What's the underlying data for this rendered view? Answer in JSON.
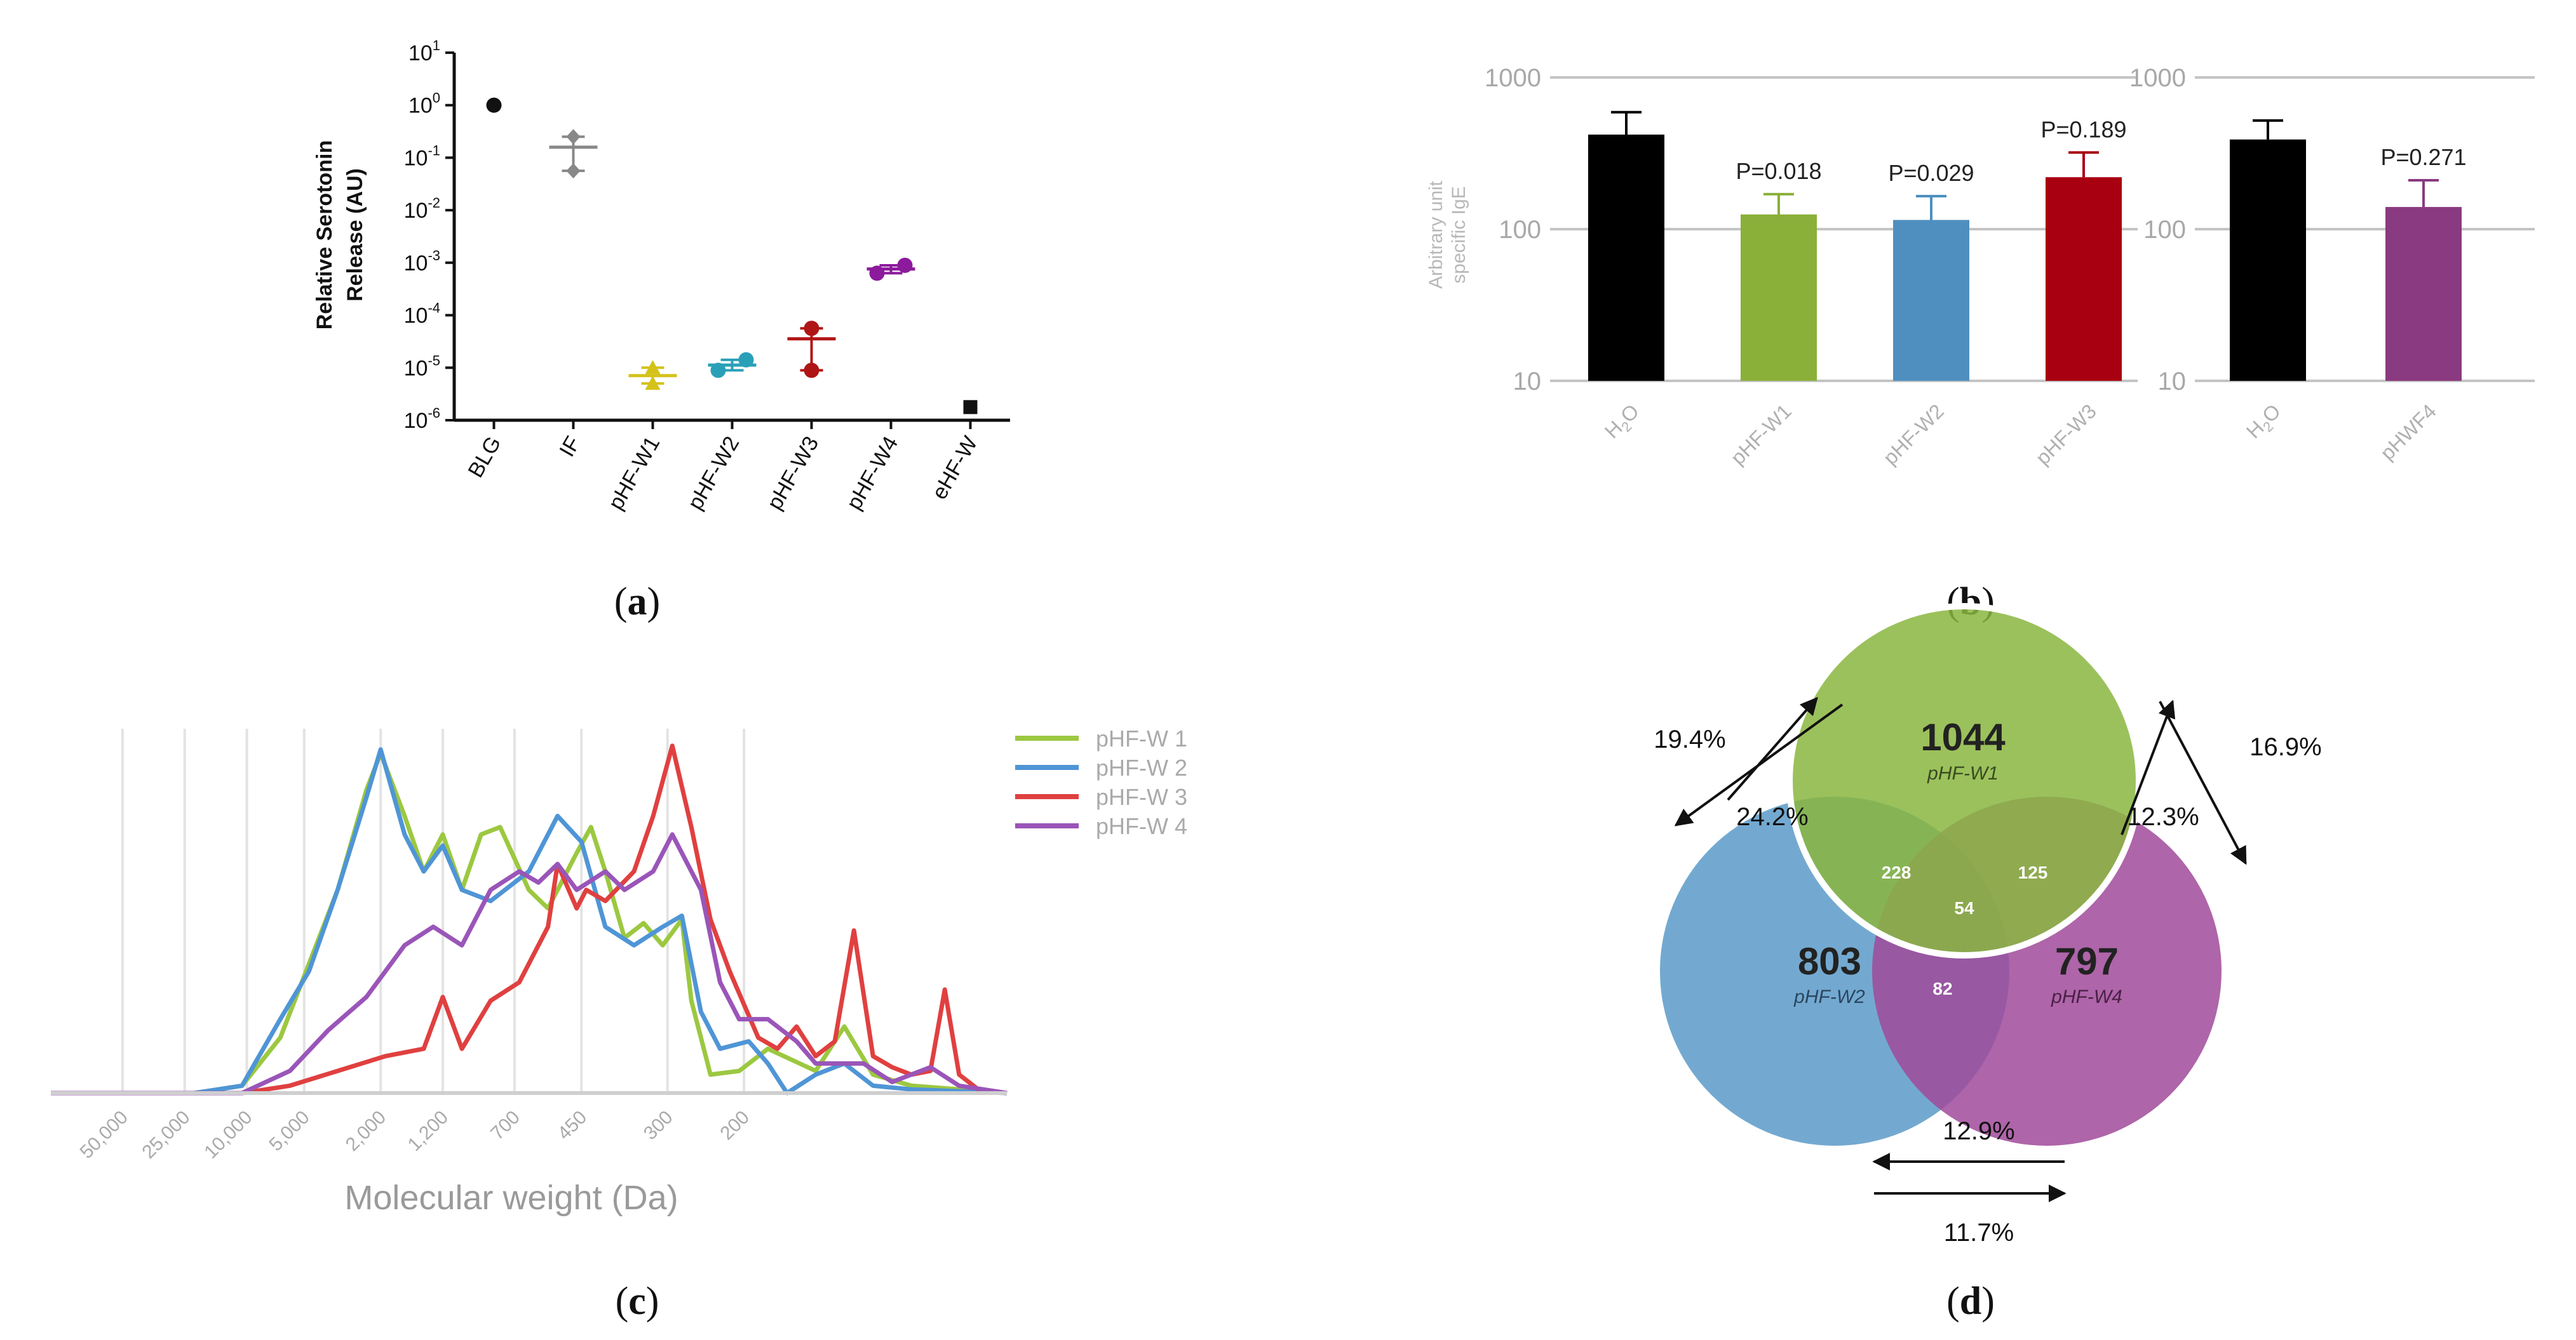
{
  "panels": [
    {
      "label_open": "(",
      "letter": "a",
      "label_close": ")"
    },
    {
      "label_open": "(",
      "letter": "b",
      "label_close": ")"
    },
    {
      "label_open": "(",
      "letter": "c",
      "label_close": ")"
    },
    {
      "label_open": "(",
      "letter": "d",
      "label_close": ")"
    }
  ],
  "chart_data": [
    {
      "id": "a",
      "type": "scatter",
      "scale": "log",
      "ylabel_line1": "Relative Serotonin",
      "ylabel_line2": "Release (AU)",
      "ylim_exp": [
        -6,
        1
      ],
      "yticks": [
        {
          "base": "10",
          "exp": "1",
          "value": 1
        },
        {
          "base": "10",
          "exp": "0",
          "value": 0
        },
        {
          "base": "10",
          "exp": "-1",
          "value": -1
        },
        {
          "base": "10",
          "exp": "-2",
          "value": -2
        },
        {
          "base": "10",
          "exp": "-3",
          "value": -3
        },
        {
          "base": "10",
          "exp": "-4",
          "value": -4
        },
        {
          "base": "10",
          "exp": "-5",
          "value": -5
        },
        {
          "base": "10",
          "exp": "-6",
          "value": -6
        }
      ],
      "categories": [
        "BLG",
        "IF",
        "pHF-W1",
        "pHF-W2",
        "pHF-W3",
        "pHF-W4",
        "eHF-W"
      ],
      "series": [
        {
          "category": "BLG",
          "color": "#111111",
          "marker": "circle",
          "points_log10": [
            0
          ],
          "mean_log10": null
        },
        {
          "category": "IF",
          "color": "#888888",
          "marker": "diamond",
          "points_log10": [
            -0.6,
            -1.25
          ],
          "mean_log10": -0.8
        },
        {
          "category": "pHF-W1",
          "color": "#d4c21a",
          "marker": "triangle",
          "points_log10": [
            -5,
            -5.3
          ],
          "mean_log10": -5.15
        },
        {
          "category": "pHF-W2",
          "color": "#2aa0b8",
          "marker": "circle",
          "points_log10": [
            -5.05,
            -4.85
          ],
          "mean_log10": -4.95
        },
        {
          "category": "pHF-W3",
          "color": "#b01515",
          "marker": "circle",
          "points_log10": [
            -4.25,
            -5.05
          ],
          "mean_log10": -4.45
        },
        {
          "category": "pHF-W4",
          "color": "#8c1a9c",
          "marker": "circle",
          "points_log10": [
            -3.2,
            -3.05
          ],
          "mean_log10": -3.12
        },
        {
          "category": "eHF-W",
          "color": "#111111",
          "marker": "square",
          "points_log10": [
            -5.75
          ],
          "mean_log10": null
        }
      ]
    },
    {
      "id": "b",
      "type": "bar",
      "scale": "log",
      "ylabel_line1": "Arbitrary unit",
      "ylabel_line2": "specific IgE",
      "yticks": [
        "1000",
        "100",
        "10"
      ],
      "ylim": [
        10,
        1000
      ],
      "groups": [
        {
          "bars": [
            {
              "label_main": "H",
              "label_sub": "2",
              "label_end": "O",
              "value": 420,
              "err": 590,
              "color": "#000000",
              "p": ""
            },
            {
              "label_main": "pHF-W1",
              "label_sub": "",
              "label_end": "",
              "value": 125,
              "err": 170,
              "color": "#8ab03a",
              "p": "P=0.018"
            },
            {
              "label_main": "pHF-W2",
              "label_sub": "",
              "label_end": "",
              "value": 115,
              "err": 165,
              "color": "#4e8fbf",
              "p": "P=0.029"
            },
            {
              "label_main": "pHF-W3",
              "label_sub": "",
              "label_end": "",
              "value": 220,
              "err": 320,
              "color": "#a80010",
              "p": "P=0.189"
            }
          ]
        },
        {
          "bars": [
            {
              "label_main": "H",
              "label_sub": "2",
              "label_end": "O",
              "value": 390,
              "err": 520,
              "color": "#000000",
              "p": ""
            },
            {
              "label_main": "pHWF4",
              "label_sub": "",
              "label_end": "",
              "value": 140,
              "err": 210,
              "color": "#8a3a80",
              "p": "P=0.271"
            }
          ]
        }
      ]
    },
    {
      "id": "c",
      "type": "line",
      "xlabel": "Molecular weight (Da)",
      "xticks": [
        "50,000",
        "25,000",
        "10,000",
        "5,000",
        "2,000",
        "1,200",
        "700",
        "450",
        "300",
        "200"
      ],
      "xtick_pos": [
        0.075,
        0.14,
        0.205,
        0.265,
        0.345,
        0.41,
        0.485,
        0.555,
        0.645,
        0.725
      ],
      "legend": [
        "pHF-W 1",
        "pHF-W 2",
        "pHF-W 3",
        "pHF-W 4"
      ],
      "series": [
        {
          "name": "pHF-W 1",
          "color": "#9cc840",
          "values": [
            [
              0,
              0
            ],
            [
              0.15,
              0
            ],
            [
              0.2,
              0.02
            ],
            [
              0.24,
              0.15
            ],
            [
              0.27,
              0.35
            ],
            [
              0.3,
              0.55
            ],
            [
              0.33,
              0.82
            ],
            [
              0.345,
              0.92
            ],
            [
              0.37,
              0.75
            ],
            [
              0.39,
              0.6
            ],
            [
              0.41,
              0.7
            ],
            [
              0.43,
              0.55
            ],
            [
              0.45,
              0.7
            ],
            [
              0.47,
              0.72
            ],
            [
              0.5,
              0.55
            ],
            [
              0.52,
              0.5
            ],
            [
              0.55,
              0.65
            ],
            [
              0.565,
              0.72
            ],
            [
              0.58,
              0.6
            ],
            [
              0.6,
              0.42
            ],
            [
              0.62,
              0.46
            ],
            [
              0.64,
              0.4
            ],
            [
              0.66,
              0.47
            ],
            [
              0.67,
              0.25
            ],
            [
              0.69,
              0.05
            ],
            [
              0.72,
              0.06
            ],
            [
              0.75,
              0.12
            ],
            [
              0.8,
              0.06
            ],
            [
              0.83,
              0.18
            ],
            [
              0.86,
              0.05
            ],
            [
              0.9,
              0.02
            ],
            [
              1,
              0
            ]
          ]
        },
        {
          "name": "pHF-W 2",
          "color": "#4f95d6",
          "values": [
            [
              0,
              0
            ],
            [
              0.15,
              0
            ],
            [
              0.2,
              0.02
            ],
            [
              0.24,
              0.2
            ],
            [
              0.27,
              0.33
            ],
            [
              0.3,
              0.55
            ],
            [
              0.33,
              0.8
            ],
            [
              0.345,
              0.93
            ],
            [
              0.37,
              0.7
            ],
            [
              0.39,
              0.6
            ],
            [
              0.41,
              0.67
            ],
            [
              0.43,
              0.55
            ],
            [
              0.46,
              0.52
            ],
            [
              0.5,
              0.6
            ],
            [
              0.53,
              0.75
            ],
            [
              0.555,
              0.68
            ],
            [
              0.58,
              0.45
            ],
            [
              0.61,
              0.4
            ],
            [
              0.64,
              0.45
            ],
            [
              0.66,
              0.48
            ],
            [
              0.68,
              0.22
            ],
            [
              0.7,
              0.12
            ],
            [
              0.73,
              0.14
            ],
            [
              0.75,
              0.08
            ],
            [
              0.77,
              0.0
            ],
            [
              0.8,
              0.05
            ],
            [
              0.83,
              0.08
            ],
            [
              0.86,
              0.02
            ],
            [
              0.9,
              0.01
            ],
            [
              1,
              0
            ]
          ]
        },
        {
          "name": "pHF-W 3",
          "color": "#e04040",
          "values": [
            [
              0,
              0
            ],
            [
              0.2,
              0
            ],
            [
              0.25,
              0.02
            ],
            [
              0.3,
              0.06
            ],
            [
              0.35,
              0.1
            ],
            [
              0.39,
              0.12
            ],
            [
              0.41,
              0.26
            ],
            [
              0.43,
              0.12
            ],
            [
              0.46,
              0.25
            ],
            [
              0.49,
              0.3
            ],
            [
              0.52,
              0.45
            ],
            [
              0.53,
              0.62
            ],
            [
              0.55,
              0.5
            ],
            [
              0.56,
              0.55
            ],
            [
              0.58,
              0.52
            ],
            [
              0.61,
              0.6
            ],
            [
              0.63,
              0.75
            ],
            [
              0.65,
              0.94
            ],
            [
              0.67,
              0.72
            ],
            [
              0.69,
              0.47
            ],
            [
              0.71,
              0.33
            ],
            [
              0.74,
              0.15
            ],
            [
              0.76,
              0.12
            ],
            [
              0.78,
              0.18
            ],
            [
              0.8,
              0.1
            ],
            [
              0.82,
              0.14
            ],
            [
              0.84,
              0.44
            ],
            [
              0.86,
              0.1
            ],
            [
              0.88,
              0.07
            ],
            [
              0.9,
              0.05
            ],
            [
              0.92,
              0.06
            ],
            [
              0.935,
              0.28
            ],
            [
              0.95,
              0.05
            ],
            [
              0.97,
              0.01
            ],
            [
              1,
              0
            ]
          ]
        },
        {
          "name": "pHF-W 4",
          "color": "#9a55b8",
          "values": [
            [
              0,
              0
            ],
            [
              0.2,
              0
            ],
            [
              0.25,
              0.06
            ],
            [
              0.29,
              0.17
            ],
            [
              0.33,
              0.26
            ],
            [
              0.37,
              0.4
            ],
            [
              0.4,
              0.45
            ],
            [
              0.43,
              0.4
            ],
            [
              0.46,
              0.55
            ],
            [
              0.49,
              0.6
            ],
            [
              0.51,
              0.57
            ],
            [
              0.53,
              0.62
            ],
            [
              0.55,
              0.55
            ],
            [
              0.58,
              0.6
            ],
            [
              0.6,
              0.55
            ],
            [
              0.63,
              0.6
            ],
            [
              0.65,
              0.7
            ],
            [
              0.68,
              0.55
            ],
            [
              0.7,
              0.3
            ],
            [
              0.72,
              0.2
            ],
            [
              0.75,
              0.2
            ],
            [
              0.78,
              0.14
            ],
            [
              0.8,
              0.08
            ],
            [
              0.85,
              0.08
            ],
            [
              0.88,
              0.03
            ],
            [
              0.9,
              0.05
            ],
            [
              0.92,
              0.07
            ],
            [
              0.95,
              0.02
            ],
            [
              1,
              0
            ]
          ]
        }
      ]
    },
    {
      "id": "d",
      "type": "venn",
      "sets": [
        {
          "name": "pHF-W1",
          "count": "1044",
          "color": "#8ab63f"
        },
        {
          "name": "pHF-W2",
          "count": "803",
          "color": "#5a9ac8"
        },
        {
          "name": "pHF-W4",
          "count": "797",
          "color": "#a04a9a"
        }
      ],
      "intersections": {
        "w1_w2": "228",
        "w1_w4": "125",
        "w2_w4": "82",
        "all": "54"
      },
      "percentages": {
        "left_outer": "19.4%",
        "left_inner": "24.2%",
        "right_outer": "16.9%",
        "right_inner": "12.3%",
        "bottom_top": "12.9%",
        "bottom_bottom": "11.7%"
      }
    }
  ]
}
